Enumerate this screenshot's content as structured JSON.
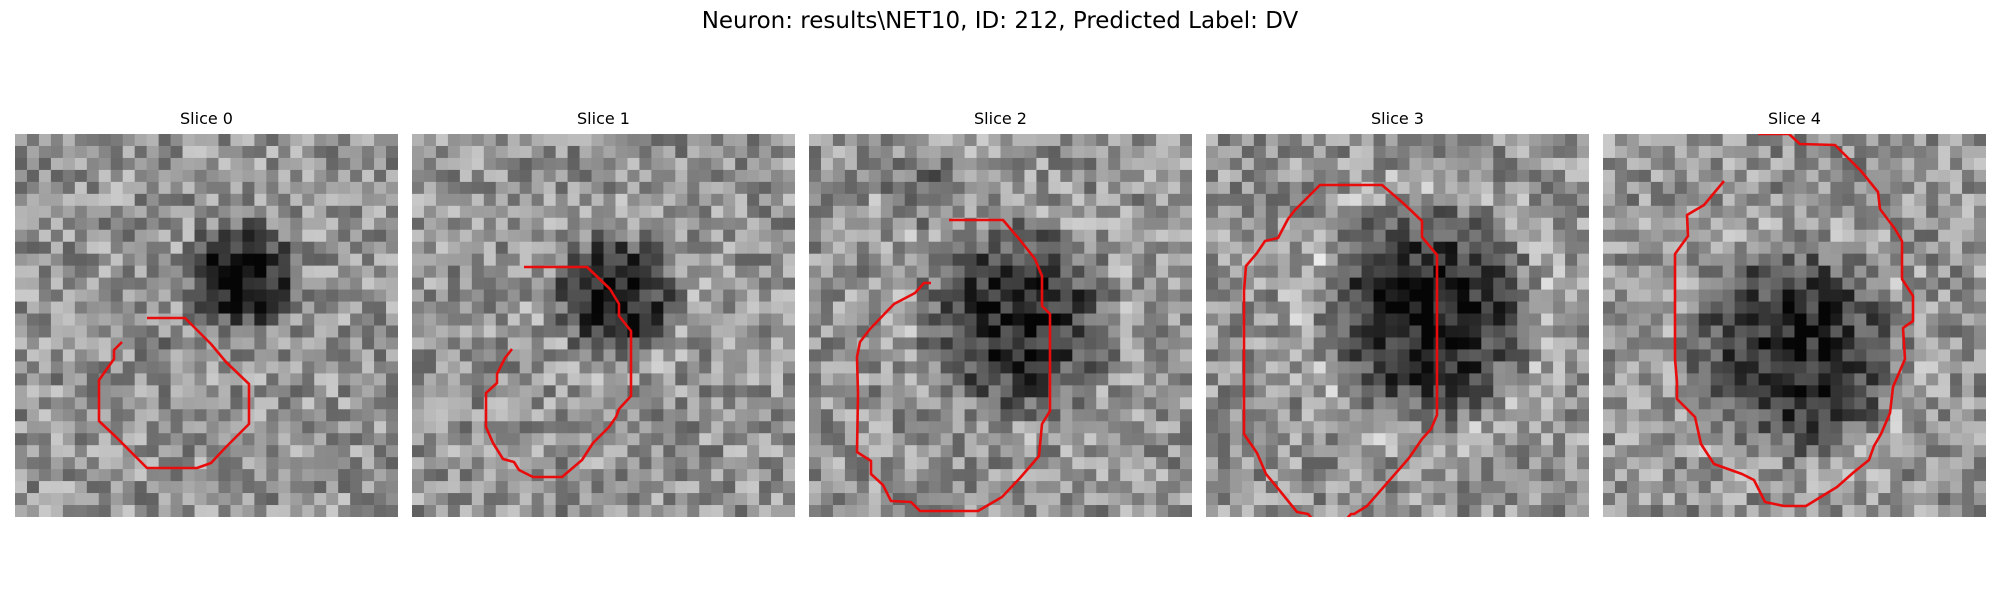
{
  "figure": {
    "title": "Neuron: results\\NET10, ID: 212, Predicted Label: DV"
  },
  "panels": [
    {
      "title": "Slice 0"
    },
    {
      "title": "Slice 1"
    },
    {
      "title": "Slice 2"
    },
    {
      "title": "Slice 3"
    },
    {
      "title": "Slice 4"
    }
  ],
  "colors": {
    "contour": "#e80c0c",
    "background": "#ffffff",
    "grayscale_colormap": "gray"
  }
}
